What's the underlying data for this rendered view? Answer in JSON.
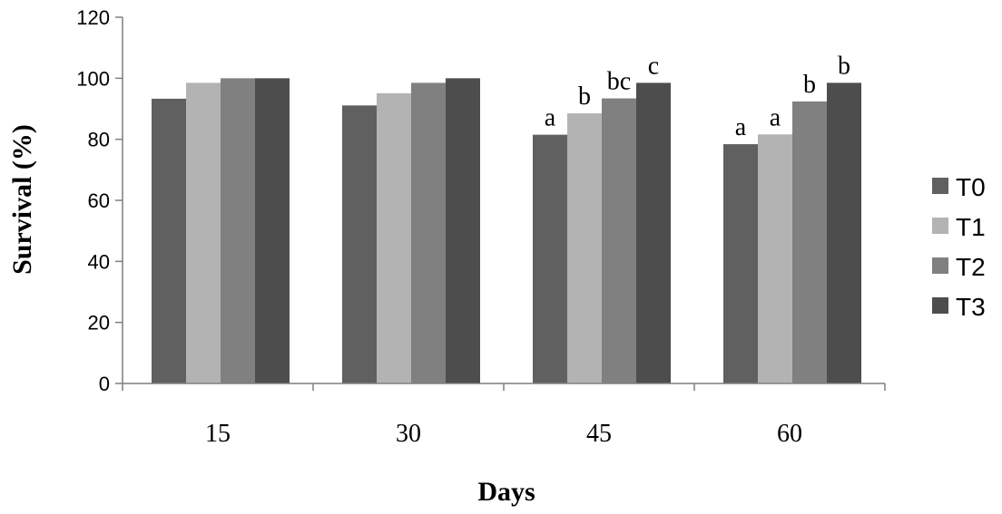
{
  "chart_data": {
    "type": "bar",
    "xlabel": "Days",
    "ylabel": "Survival (%)",
    "categories": [
      "15",
      "30",
      "45",
      "60"
    ],
    "ylim": [
      0,
      120
    ],
    "yticks": [
      0,
      20,
      40,
      60,
      80,
      100,
      120
    ],
    "grid": false,
    "legend_position": "right",
    "series": [
      {
        "name": "T0",
        "color": "#606060",
        "values": [
          93.3,
          91.1,
          81.5,
          78.4
        ],
        "labels": [
          "",
          "",
          "a",
          "a"
        ]
      },
      {
        "name": "T1",
        "color": "#b3b3b3",
        "values": [
          98.5,
          95.1,
          88.5,
          81.6
        ],
        "labels": [
          "",
          "",
          "b",
          "a"
        ]
      },
      {
        "name": "T2",
        "color": "#808080",
        "values": [
          100,
          98.5,
          93.4,
          92.4
        ],
        "labels": [
          "",
          "",
          "bc",
          "b"
        ]
      },
      {
        "name": "T3",
        "color": "#4d4d4d",
        "values": [
          100,
          100,
          98.5,
          98.5
        ],
        "labels": [
          "",
          "",
          "c",
          "b"
        ]
      }
    ]
  }
}
